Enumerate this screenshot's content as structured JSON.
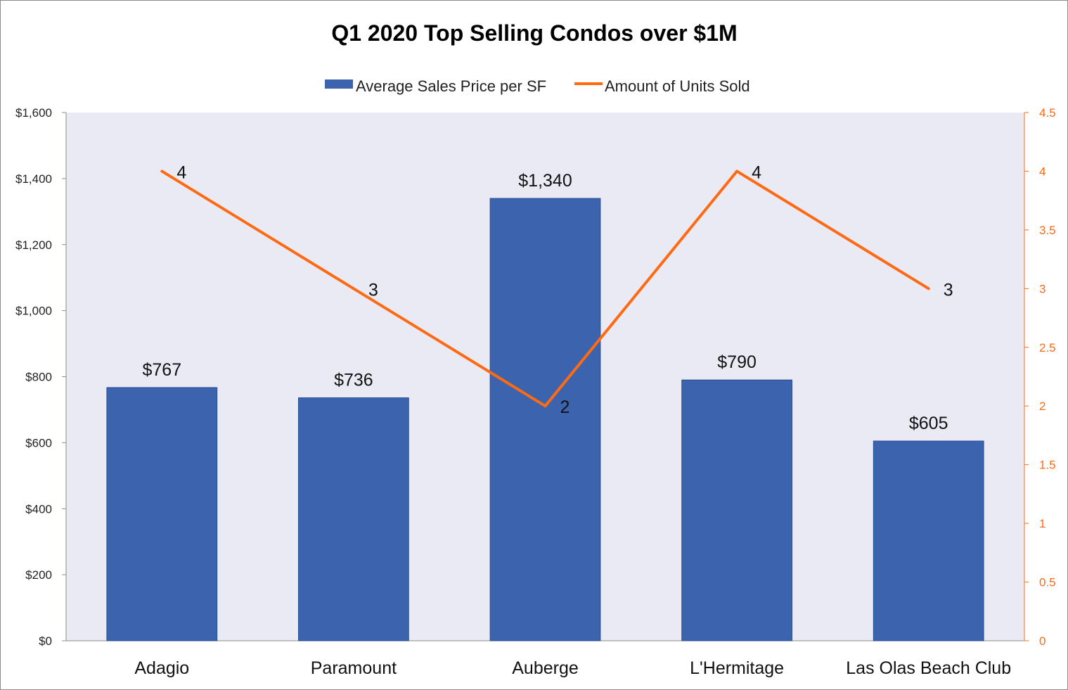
{
  "chart_data": {
    "type": "bar",
    "title": "Q1 2020 Top Selling Condos over $1M",
    "categories": [
      "Adagio",
      "Paramount",
      "Auberge",
      "L'Hermitage",
      "Las Olas Beach Club"
    ],
    "series": [
      {
        "name": "Average Sales Price per SF",
        "type": "bar",
        "axis": "left",
        "color": "#3c63ad",
        "values": [
          767,
          736,
          1340,
          790,
          605
        ],
        "labels": [
          "$767",
          "$736",
          "$1,340",
          "$790",
          "$605"
        ]
      },
      {
        "name": "Amount of Units Sold",
        "type": "line",
        "axis": "right",
        "color": "#ff6a13",
        "values": [
          4,
          3,
          2,
          4,
          3
        ],
        "labels": [
          "4",
          "3",
          "2",
          "4",
          "3"
        ]
      }
    ],
    "y_left": {
      "min": 0,
      "max": 1600,
      "ticks": [
        0,
        200,
        400,
        600,
        800,
        1000,
        1200,
        1400,
        1600
      ],
      "tick_labels": [
        "$0",
        "$200",
        "$400",
        "$600",
        "$800",
        "$1,000",
        "$1,200",
        "$1,400",
        "$1,600"
      ]
    },
    "y_right": {
      "min": 0,
      "max": 4.5,
      "ticks": [
        0,
        0.5,
        1,
        1.5,
        2,
        2.5,
        3,
        3.5,
        4,
        4.5
      ],
      "tick_labels": [
        "0",
        "0.5",
        "1",
        "1.5",
        "2",
        "2.5",
        "3",
        "3.5",
        "4",
        "4.5"
      ],
      "color": "#ff6a13"
    },
    "plot_background": "#e9eaf4",
    "grid": false,
    "legend_position": "top"
  }
}
